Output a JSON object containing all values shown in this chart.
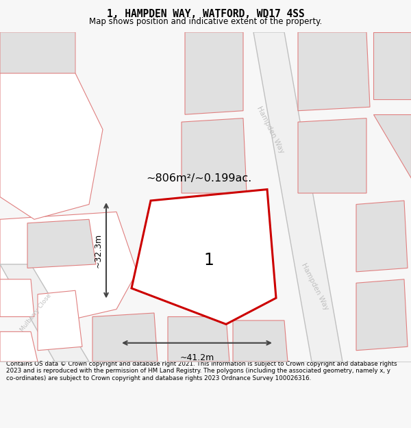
{
  "title": "1, HAMPDEN WAY, WATFORD, WD17 4SS",
  "subtitle": "Map shows position and indicative extent of the property.",
  "footer": "Contains OS data © Crown copyright and database right 2021. This information is subject to Crown copyright and database rights 2023 and is reproduced with the permission of HM Land Registry. The polygons (including the associated geometry, namely x, y co-ordinates) are subject to Crown copyright and database rights 2023 Ordnance Survey 100026316.",
  "bg_color": "#f7f7f7",
  "map_bg": "#ffffff",
  "main_polygon_color": "#cc0000",
  "main_polygon_fill": "#ffffff",
  "label_number": "1",
  "area_label": "~806m²/~0.199ac.",
  "dim_width_label": "~41.2m",
  "dim_height_label": "~32.3m",
  "road_label": "Hampden Way",
  "street_color": "#c0c0c0",
  "building_fill": "#e0e0e0",
  "pink_stroke": "#e08080",
  "pink_fill": "#ffffff",
  "outline_color": "#e08080"
}
